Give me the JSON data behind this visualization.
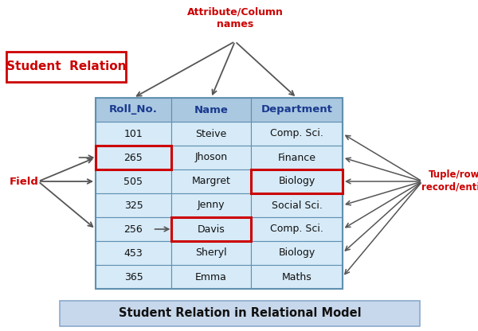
{
  "title": "Student Relation in Relational Model",
  "label_top_left": "Student  Relation",
  "label_attr": "Attribute/Column\nnames",
  "label_field": "Field",
  "label_tuple": "Tuple/row/\nrecord/entity",
  "headers": [
    "Roll_No.",
    "Name",
    "Department"
  ],
  "rows": [
    [
      "101",
      "Steive",
      "Comp. Sci."
    ],
    [
      "265",
      "Jhoson",
      "Finance"
    ],
    [
      "505",
      "Margret",
      "Biology"
    ],
    [
      "325",
      "Jenny",
      "Social Sci."
    ],
    [
      "256",
      "Davis",
      "Comp. Sci."
    ],
    [
      "453",
      "Sheryl",
      "Biology"
    ],
    [
      "365",
      "Emma",
      "Maths"
    ]
  ],
  "header_color": "#1a3a8f",
  "cell_bg_color": "#d6eaf8",
  "header_bg_color": "#aac8e0",
  "table_border_color": "#6090b0",
  "red_box_color": "#cc0000",
  "red_text_color": "#cc0000",
  "arrow_color": "#555555",
  "bg_color": "#ffffff",
  "title_bg_color": "#c8d8ec",
  "title_border_color": "#8aaacc",
  "fig_width": 6.0,
  "fig_height": 4.16,
  "dpi": 100
}
